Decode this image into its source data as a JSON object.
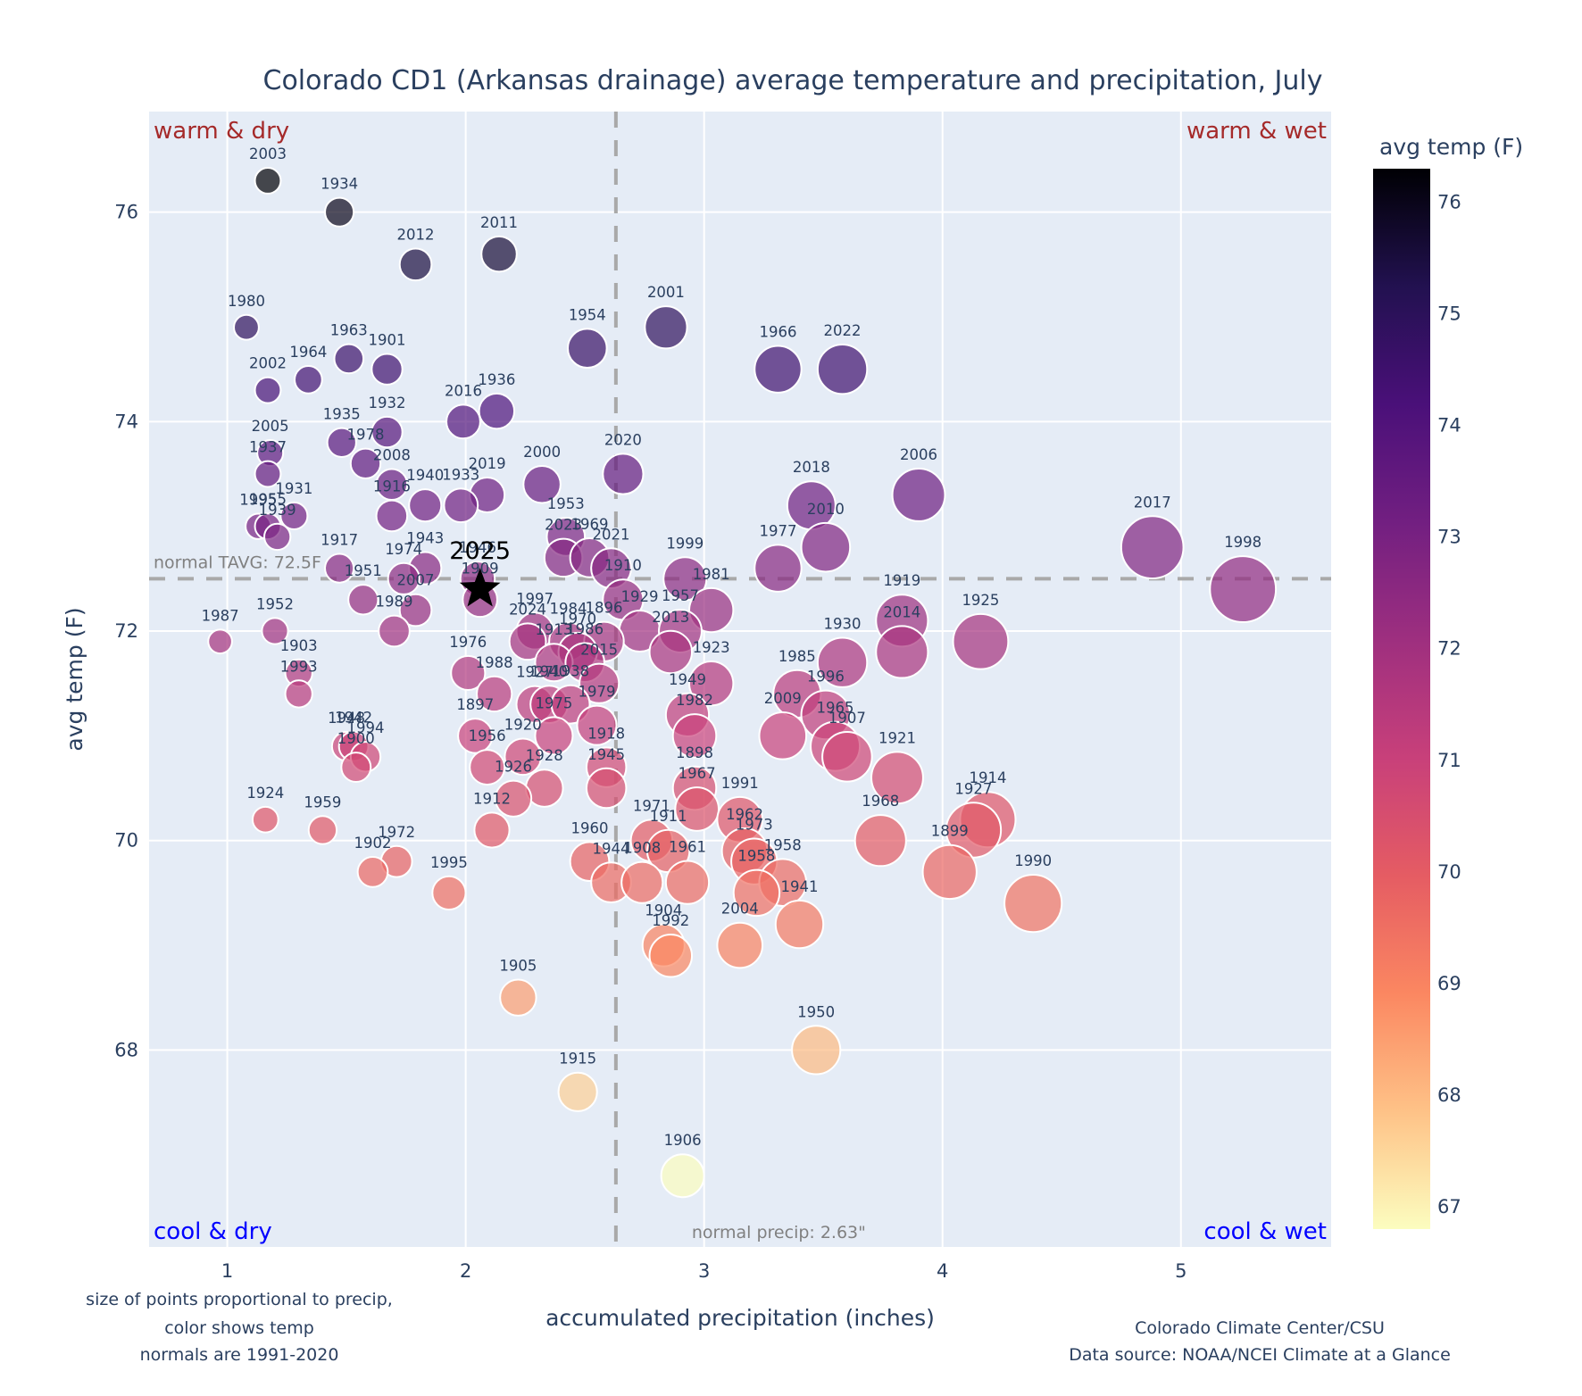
{
  "chart_data": {
    "type": "scatter",
    "title": "Colorado CD1 (Arkansas drainage) average temperature and precipitation, July",
    "xlabel": "accumulated precipitation (inches)",
    "ylabel": "avg temp (F)",
    "xlim": [
      0.672,
      5.63
    ],
    "ylim": [
      66.12,
      76.96
    ],
    "xticks": [
      1,
      2,
      3,
      4,
      5
    ],
    "yticks": [
      68,
      70,
      72,
      74,
      76
    ],
    "grid": true,
    "colorbar": {
      "title": "avg temp (F)",
      "range": [
        66.8,
        76.3
      ],
      "ticks": [
        67,
        68,
        69,
        70,
        71,
        72,
        73,
        74,
        75,
        76
      ],
      "colorscale": [
        "#fcfdbf",
        "#fec287",
        "#fb8761",
        "#e55c63",
        "#c8407a",
        "#9e2f7f",
        "#721f81",
        "#4a1079",
        "#221150",
        "#000004"
      ],
      "placement": "right"
    },
    "normals": {
      "temp": 72.5,
      "temp_label": "normal TAVG: 72.5F",
      "precip": 2.63,
      "precip_label": "normal precip: 2.63\""
    },
    "quadrant_labels": {
      "top_left": "warm & dry",
      "top_right": "warm & wet",
      "bottom_left": "cool & dry",
      "bottom_right": "cool & wet"
    },
    "highlight": {
      "year": "2025",
      "precip": 2.06,
      "temp": 72.4,
      "marker": "star"
    },
    "points": [
      {
        "year": "2003",
        "precip": 1.17,
        "temp": 76.3
      },
      {
        "year": "1934",
        "precip": 1.47,
        "temp": 76.0
      },
      {
        "year": "2012",
        "precip": 1.79,
        "temp": 75.5
      },
      {
        "year": "2011",
        "precip": 2.14,
        "temp": 75.6
      },
      {
        "year": "1980",
        "precip": 1.08,
        "temp": 74.9
      },
      {
        "year": "1954",
        "precip": 2.51,
        "temp": 74.7
      },
      {
        "year": "2001",
        "precip": 2.84,
        "temp": 74.9
      },
      {
        "year": "1966",
        "precip": 3.31,
        "temp": 74.5
      },
      {
        "year": "2022",
        "precip": 3.58,
        "temp": 74.5
      },
      {
        "year": "1963",
        "precip": 1.51,
        "temp": 74.6
      },
      {
        "year": "1901",
        "precip": 1.67,
        "temp": 74.5
      },
      {
        "year": "1964",
        "precip": 1.34,
        "temp": 74.4
      },
      {
        "year": "2002",
        "precip": 1.17,
        "temp": 74.3
      },
      {
        "year": "1936",
        "precip": 2.13,
        "temp": 74.1
      },
      {
        "year": "2016",
        "precip": 1.99,
        "temp": 74.0
      },
      {
        "year": "1932",
        "precip": 1.67,
        "temp": 73.9
      },
      {
        "year": "1935",
        "precip": 1.48,
        "temp": 73.8
      },
      {
        "year": "2005",
        "precip": 1.18,
        "temp": 73.7
      },
      {
        "year": "1978",
        "precip": 1.58,
        "temp": 73.6
      },
      {
        "year": "1937",
        "precip": 1.17,
        "temp": 73.5
      },
      {
        "year": "2020",
        "precip": 2.66,
        "temp": 73.5
      },
      {
        "year": "2000",
        "precip": 2.32,
        "temp": 73.4
      },
      {
        "year": "2008",
        "precip": 1.69,
        "temp": 73.4
      },
      {
        "year": "2019",
        "precip": 2.09,
        "temp": 73.3
      },
      {
        "year": "2006",
        "precip": 3.9,
        "temp": 73.3
      },
      {
        "year": "1940",
        "precip": 1.83,
        "temp": 73.2
      },
      {
        "year": "1933",
        "precip": 1.98,
        "temp": 73.2
      },
      {
        "year": "2018",
        "precip": 3.45,
        "temp": 73.2
      },
      {
        "year": "1916",
        "precip": 1.69,
        "temp": 73.1
      },
      {
        "year": "1931",
        "precip": 1.28,
        "temp": 73.1
      },
      {
        "year": "1995",
        "precip": 1.13,
        "temp": 73.0
      },
      {
        "year": "1955",
        "precip": 1.17,
        "temp": 73.0
      },
      {
        "year": "1939",
        "precip": 1.21,
        "temp": 72.9
      },
      {
        "year": "1953",
        "precip": 2.42,
        "temp": 72.9
      },
      {
        "year": "2010",
        "precip": 3.51,
        "temp": 72.8
      },
      {
        "year": "2017",
        "precip": 4.88,
        "temp": 72.8
      },
      {
        "year": "2023",
        "precip": 2.41,
        "temp": 72.7
      },
      {
        "year": "1969",
        "precip": 2.52,
        "temp": 72.7
      },
      {
        "year": "1977",
        "precip": 3.31,
        "temp": 72.6
      },
      {
        "year": "2021",
        "precip": 2.61,
        "temp": 72.6
      },
      {
        "year": "1917",
        "precip": 1.47,
        "temp": 72.6
      },
      {
        "year": "1943",
        "precip": 1.83,
        "temp": 72.6
      },
      {
        "year": "1974",
        "precip": 1.74,
        "temp": 72.5
      },
      {
        "year": "1999",
        "precip": 2.92,
        "temp": 72.5
      },
      {
        "year": "1946",
        "precip": 2.05,
        "temp": 72.5
      },
      {
        "year": "1909",
        "precip": 2.06,
        "temp": 72.3
      },
      {
        "year": "1951",
        "precip": 1.57,
        "temp": 72.3
      },
      {
        "year": "1910",
        "precip": 2.66,
        "temp": 72.3
      },
      {
        "year": "2007",
        "precip": 1.79,
        "temp": 72.2
      },
      {
        "year": "1981",
        "precip": 3.03,
        "temp": 72.2
      },
      {
        "year": "1998",
        "precip": 5.26,
        "temp": 72.4
      },
      {
        "year": "1919",
        "precip": 3.83,
        "temp": 72.1
      },
      {
        "year": "1929",
        "precip": 2.73,
        "temp": 72.0
      },
      {
        "year": "1957",
        "precip": 2.9,
        "temp": 72.0
      },
      {
        "year": "1989",
        "precip": 1.7,
        "temp": 72.0
      },
      {
        "year": "1952",
        "precip": 1.2,
        "temp": 72.0
      },
      {
        "year": "1997",
        "precip": 2.29,
        "temp": 72.0
      },
      {
        "year": "2024",
        "precip": 2.26,
        "temp": 71.9
      },
      {
        "year": "1984",
        "precip": 2.43,
        "temp": 71.9
      },
      {
        "year": "1896",
        "precip": 2.58,
        "temp": 71.9
      },
      {
        "year": "1970",
        "precip": 2.47,
        "temp": 71.8
      },
      {
        "year": "2013",
        "precip": 2.86,
        "temp": 71.8
      },
      {
        "year": "2014",
        "precip": 3.83,
        "temp": 71.8
      },
      {
        "year": "1925",
        "precip": 4.16,
        "temp": 71.9
      },
      {
        "year": "1987",
        "precip": 0.97,
        "temp": 71.9
      },
      {
        "year": "1913",
        "precip": 2.37,
        "temp": 71.7
      },
      {
        "year": "1930",
        "precip": 3.58,
        "temp": 71.7
      },
      {
        "year": "1986",
        "precip": 2.5,
        "temp": 71.7
      },
      {
        "year": "1903",
        "precip": 1.3,
        "temp": 71.6
      },
      {
        "year": "1976",
        "precip": 2.01,
        "temp": 71.6
      },
      {
        "year": "1923",
        "precip": 3.03,
        "temp": 71.5
      },
      {
        "year": "2015",
        "precip": 2.56,
        "temp": 71.5
      },
      {
        "year": "1927",
        "precip": 2.29,
        "temp": 71.3
      },
      {
        "year": "1940b",
        "precip": 2.35,
        "temp": 71.3
      },
      {
        "year": "1988",
        "precip": 2.12,
        "temp": 71.4
      },
      {
        "year": "1993",
        "precip": 1.3,
        "temp": 71.4
      },
      {
        "year": "1985",
        "precip": 3.39,
        "temp": 71.4
      },
      {
        "year": "1938",
        "precip": 2.44,
        "temp": 71.3
      },
      {
        "year": "1949",
        "precip": 2.93,
        "temp": 71.2
      },
      {
        "year": "1996",
        "precip": 3.51,
        "temp": 71.2
      },
      {
        "year": "1979",
        "precip": 2.55,
        "temp": 71.1
      },
      {
        "year": "1897",
        "precip": 2.04,
        "temp": 71.0
      },
      {
        "year": "1982",
        "precip": 2.96,
        "temp": 71.0
      },
      {
        "year": "2009",
        "precip": 3.33,
        "temp": 71.0
      },
      {
        "year": "1965",
        "precip": 3.55,
        "temp": 70.9
      },
      {
        "year": "1975",
        "precip": 2.37,
        "temp": 71.0
      },
      {
        "year": "1948",
        "precip": 1.5,
        "temp": 70.9
      },
      {
        "year": "1942",
        "precip": 1.53,
        "temp": 70.9
      },
      {
        "year": "1907",
        "precip": 3.6,
        "temp": 70.8
      },
      {
        "year": "1994",
        "precip": 1.58,
        "temp": 70.8
      },
      {
        "year": "1920",
        "precip": 2.24,
        "temp": 70.8
      },
      {
        "year": "1918",
        "precip": 2.59,
        "temp": 70.7
      },
      {
        "year": "1900",
        "precip": 1.54,
        "temp": 70.7
      },
      {
        "year": "1956",
        "precip": 2.09,
        "temp": 70.7
      },
      {
        "year": "1921",
        "precip": 3.81,
        "temp": 70.6
      },
      {
        "year": "1898",
        "precip": 2.96,
        "temp": 70.5
      },
      {
        "year": "1945",
        "precip": 2.59,
        "temp": 70.5
      },
      {
        "year": "1928",
        "precip": 2.33,
        "temp": 70.5
      },
      {
        "year": "1967",
        "precip": 2.97,
        "temp": 70.3
      },
      {
        "year": "1926",
        "precip": 2.2,
        "temp": 70.4
      },
      {
        "year": "1914",
        "precip": 4.19,
        "temp": 70.2
      },
      {
        "year": "1924",
        "precip": 1.16,
        "temp": 70.2
      },
      {
        "year": "1991",
        "precip": 3.15,
        "temp": 70.2
      },
      {
        "year": "1927b",
        "precip": 4.13,
        "temp": 70.1
      },
      {
        "year": "1959",
        "precip": 1.4,
        "temp": 70.1
      },
      {
        "year": "1912",
        "precip": 2.11,
        "temp": 70.1
      },
      {
        "year": "1968",
        "precip": 3.74,
        "temp": 70.0
      },
      {
        "year": "1971",
        "precip": 2.78,
        "temp": 70.0
      },
      {
        "year": "1962",
        "precip": 3.17,
        "temp": 69.9
      },
      {
        "year": "1911",
        "precip": 2.85,
        "temp": 69.9
      },
      {
        "year": "1973",
        "precip": 3.21,
        "temp": 69.8
      },
      {
        "year": "1972",
        "precip": 1.71,
        "temp": 69.8
      },
      {
        "year": "1960",
        "precip": 2.52,
        "temp": 69.8
      },
      {
        "year": "1899",
        "precip": 4.03,
        "temp": 69.7
      },
      {
        "year": "1902",
        "precip": 1.61,
        "temp": 69.7
      },
      {
        "year": "1958",
        "precip": 3.33,
        "temp": 69.6
      },
      {
        "year": "1944",
        "precip": 2.61,
        "temp": 69.6
      },
      {
        "year": "1908",
        "precip": 2.74,
        "temp": 69.6
      },
      {
        "year": "1961",
        "precip": 2.93,
        "temp": 69.6
      },
      {
        "year": "1995b",
        "precip": 1.93,
        "temp": 69.5
      },
      {
        "year": "1958b",
        "precip": 3.22,
        "temp": 69.5
      },
      {
        "year": "1990",
        "precip": 4.38,
        "temp": 69.4
      },
      {
        "year": "1941",
        "precip": 3.4,
        "temp": 69.2
      },
      {
        "year": "1904",
        "precip": 2.83,
        "temp": 69.0
      },
      {
        "year": "2004",
        "precip": 3.15,
        "temp": 69.0
      },
      {
        "year": "1992",
        "precip": 2.86,
        "temp": 68.9
      },
      {
        "year": "1905",
        "precip": 2.22,
        "temp": 68.5
      },
      {
        "year": "1950",
        "precip": 3.47,
        "temp": 68.0
      },
      {
        "year": "1915",
        "precip": 2.47,
        "temp": 67.6
      },
      {
        "year": "1906",
        "precip": 2.91,
        "temp": 66.8
      }
    ]
  },
  "notes": {
    "left": [
      "size of points proportional to precip,",
      "color shows temp",
      "normals are 1991-2020"
    ],
    "right": [
      "Colorado Climate Center/CSU",
      "Data source: NOAA/NCEI Climate at a Glance"
    ]
  }
}
